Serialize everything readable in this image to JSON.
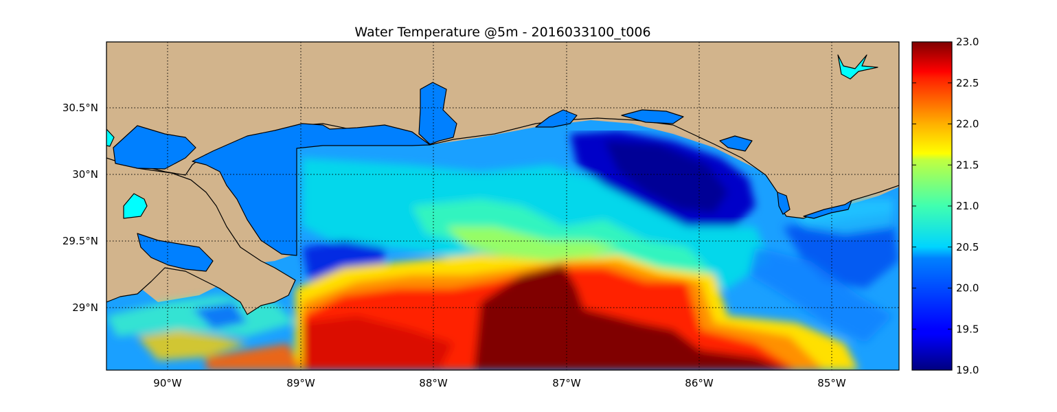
{
  "title": "Water Temperature @5m - 2016033100_t006",
  "colors": {
    "land": "#D2B48C",
    "coast": "#000000",
    "inland_water": "#0080FF",
    "lake": "#00FFFF",
    "frame": "#000000"
  },
  "map": {
    "lon_range": [
      -90.5,
      -84.5
    ],
    "lat_range": [
      28.55,
      31.0
    ],
    "x_ticks": [
      {
        "value": -90,
        "label": "90°W"
      },
      {
        "value": -89,
        "label": "89°W"
      },
      {
        "value": -88,
        "label": "88°W"
      },
      {
        "value": -87,
        "label": "87°W"
      },
      {
        "value": -86,
        "label": "86°W"
      },
      {
        "value": -85,
        "label": "85°W"
      }
    ],
    "y_ticks": [
      {
        "value": 30.5,
        "label": "30.5°N"
      },
      {
        "value": 30.0,
        "label": "30°N"
      },
      {
        "value": 29.5,
        "label": "29.5°N"
      },
      {
        "value": 29.0,
        "label": "29°N"
      }
    ],
    "grid": true
  },
  "colorbar": {
    "cmap": "jet",
    "range": [
      19.0,
      23.0
    ],
    "ticks": [
      {
        "value": 23.0,
        "label": "23.0"
      },
      {
        "value": 22.5,
        "label": "22.5"
      },
      {
        "value": 22.0,
        "label": "22.0"
      },
      {
        "value": 21.5,
        "label": "21.5"
      },
      {
        "value": 21.0,
        "label": "21.0"
      },
      {
        "value": 20.5,
        "label": "20.5"
      },
      {
        "value": 20.0,
        "label": "20.0"
      },
      {
        "value": 19.5,
        "label": "19.5"
      },
      {
        "value": 19.0,
        "label": "19.0"
      }
    ]
  }
}
